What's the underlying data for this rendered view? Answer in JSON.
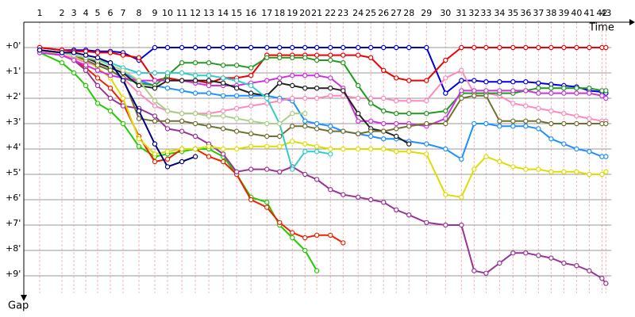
{
  "chart_data": {
    "type": "line",
    "x_label": "Time",
    "y_label": "Gap",
    "xlim": [
      0,
      48.1
    ],
    "ylim": [
      -1,
      10
    ],
    "y_inverted": true,
    "grid": true,
    "x": [
      1.25,
      3,
      3.94,
      4.88,
      5.81,
      6.81,
      7.81,
      9.06,
      10.31,
      11.31,
      12.44,
      13.5,
      14.56,
      15.69,
      16.75,
      17.88,
      19.13,
      20.13,
      21.13,
      22.13,
      23.06,
      24.13,
      25.13,
      26.31,
      27.31,
      28.31,
      29.31,
      30.31,
      31.69,
      33.19,
      34.44,
      35.44,
      36.38,
      37.44,
      38.5,
      39.5,
      40.5,
      41.5,
      42.5,
      43.5,
      44.5,
      45.5,
      45.81
    ],
    "xticks": [
      {
        "value": 1.25,
        "label": "1"
      },
      {
        "value": 3,
        "label": "2"
      },
      {
        "value": 3.94,
        "label": "3"
      },
      {
        "value": 4.88,
        "label": "4"
      },
      {
        "value": 5.81,
        "label": "5"
      },
      {
        "value": 6.81,
        "label": "6"
      },
      {
        "value": 7.81,
        "label": "7"
      },
      {
        "value": 9.06,
        "label": "8"
      },
      {
        "value": 10.31,
        "label": "9"
      },
      {
        "value": 11.31,
        "label": "10"
      },
      {
        "value": 12.44,
        "label": "11"
      },
      {
        "value": 13.5,
        "label": "12"
      },
      {
        "value": 14.56,
        "label": "13"
      },
      {
        "value": 15.69,
        "label": "14"
      },
      {
        "value": 16.75,
        "label": "15"
      },
      {
        "value": 17.88,
        "label": "16"
      },
      {
        "value": 19.13,
        "label": "17"
      },
      {
        "value": 20.13,
        "label": "18"
      },
      {
        "value": 21.13,
        "label": "19"
      },
      {
        "value": 22.13,
        "label": "20"
      },
      {
        "value": 23.06,
        "label": "21"
      },
      {
        "value": 24.13,
        "label": "22"
      },
      {
        "value": 25.13,
        "label": "23"
      },
      {
        "value": 26.31,
        "label": "24"
      },
      {
        "value": 27.31,
        "label": "25"
      },
      {
        "value": 28.31,
        "label": "26"
      },
      {
        "value": 29.31,
        "label": "27"
      },
      {
        "value": 30.31,
        "label": "28"
      },
      {
        "value": 31.69,
        "label": "29"
      },
      {
        "value": 33.19,
        "label": "30"
      },
      {
        "value": 34.44,
        "label": "31"
      },
      {
        "value": 35.44,
        "label": "32"
      },
      {
        "value": 36.38,
        "label": "33"
      },
      {
        "value": 37.44,
        "label": "34"
      },
      {
        "value": 38.5,
        "label": "35"
      },
      {
        "value": 39.5,
        "label": "36"
      },
      {
        "value": 40.5,
        "label": "37"
      },
      {
        "value": 41.5,
        "label": "38"
      },
      {
        "value": 42.5,
        "label": "39"
      },
      {
        "value": 43.5,
        "label": "40"
      },
      {
        "value": 44.5,
        "label": "41"
      },
      {
        "value": 45.5,
        "label": "42"
      },
      {
        "value": 45.81,
        "label": "43"
      }
    ],
    "yticks": [
      {
        "value": 0,
        "label": "+0'"
      },
      {
        "value": 1,
        "label": "+1'"
      },
      {
        "value": 2,
        "label": "+2'"
      },
      {
        "value": 3,
        "label": "+3'"
      },
      {
        "value": 4,
        "label": "+4'"
      },
      {
        "value": 5,
        "label": "+5'"
      },
      {
        "value": 6,
        "label": "+6'"
      },
      {
        "value": 7,
        "label": "+7'"
      },
      {
        "value": 8,
        "label": "+8'"
      },
      {
        "value": 9,
        "label": "+9'"
      }
    ],
    "series": [
      {
        "color": "#0000dd",
        "values": [
          0,
          0.1,
          0.1,
          0.1,
          0.15,
          0.15,
          0.2,
          0.5,
          0,
          0,
          0,
          0,
          0,
          0,
          0,
          0,
          0,
          0,
          0,
          0,
          0,
          0,
          0,
          0,
          0,
          0,
          0,
          0,
          0,
          1.8,
          1.3,
          1.3,
          1.35,
          1.35,
          1.35,
          1.35,
          1.4,
          1.45,
          1.5,
          1.55,
          1.7,
          1.75,
          1.8
        ]
      },
      {
        "color": "#ee0000",
        "values": [
          0,
          0.1,
          0.15,
          0.15,
          0.2,
          0.2,
          0.3,
          0.4,
          1.3,
          1.2,
          1.3,
          1.3,
          1.4,
          1.2,
          1.2,
          1.1,
          0.3,
          0.3,
          0.3,
          0.3,
          0.3,
          0.3,
          0.3,
          0.3,
          0.4,
          0.9,
          1.2,
          1.3,
          1.3,
          0.5,
          0,
          0,
          0,
          0,
          0,
          0,
          0,
          0,
          0,
          0,
          0,
          0,
          0
        ]
      },
      {
        "color": "#22cc00",
        "values": [
          0.2,
          0.6,
          1.0,
          1.5,
          2.2,
          2.5,
          3.0,
          3.9,
          4.3,
          4.2,
          4.1,
          4.0,
          4.0,
          4.3,
          5.0,
          5.9,
          6.1,
          7.0,
          7.5,
          8.0,
          8.8,
          null,
          null,
          null,
          null,
          null,
          null,
          null,
          null,
          null,
          null,
          null,
          null,
          null,
          null,
          null,
          null,
          null,
          null,
          null,
          null,
          null,
          null
        ]
      },
      {
        "color": "#ee2200",
        "values": [
          0.1,
          0.3,
          0.5,
          0.8,
          1.2,
          1.6,
          2.2,
          3.5,
          4.5,
          4.4,
          4.0,
          4.0,
          4.3,
          4.5,
          5.0,
          6.0,
          6.3,
          6.9,
          7.3,
          7.5,
          7.4,
          7.4,
          7.7,
          null,
          null,
          null,
          null,
          null,
          null,
          null,
          null,
          null,
          null,
          null,
          null,
          null,
          null,
          null,
          null,
          null,
          null,
          null,
          null
        ]
      },
      {
        "color": "#993399",
        "values": [
          0.2,
          0.3,
          0.5,
          0.9,
          1.5,
          2.0,
          2.3,
          2.4,
          2.7,
          3.2,
          3.3,
          3.5,
          3.8,
          4.2,
          4.9,
          4.8,
          4.8,
          4.9,
          4.7,
          5.0,
          5.2,
          5.6,
          5.8,
          5.9,
          6.0,
          6.1,
          6.4,
          6.6,
          6.9,
          7.0,
          7.0,
          8.8,
          8.9,
          8.5,
          8.1,
          8.1,
          8.2,
          8.3,
          8.5,
          8.6,
          8.8,
          9.1,
          9.3
        ]
      },
      {
        "color": "#dddd00",
        "values": [
          0.1,
          0.3,
          0.4,
          0.5,
          0.8,
          1.2,
          2.0,
          3.6,
          4.2,
          4.1,
          4.0,
          4.0,
          3.9,
          4.0,
          4.0,
          3.9,
          3.9,
          3.9,
          3.7,
          3.8,
          3.9,
          4.0,
          4.0,
          4.0,
          4.0,
          4.0,
          4.1,
          4.1,
          4.2,
          5.8,
          5.9,
          4.8,
          4.3,
          4.5,
          4.7,
          4.8,
          4.8,
          4.9,
          4.9,
          4.9,
          5.0,
          5.0,
          4.9
        ]
      },
      {
        "color": "#1e90ff",
        "values": [
          0.1,
          0.2,
          0.3,
          0.4,
          0.6,
          0.8,
          1.0,
          1.3,
          1.5,
          1.6,
          1.7,
          1.8,
          1.8,
          1.9,
          1.9,
          1.9,
          1.9,
          2.0,
          2.1,
          2.9,
          3.0,
          3.1,
          3.3,
          3.4,
          3.5,
          3.6,
          3.6,
          3.7,
          3.8,
          4.0,
          4.4,
          3.0,
          3.0,
          3.1,
          3.1,
          3.1,
          3.2,
          3.6,
          3.8,
          4.0,
          4.1,
          4.3,
          4.3
        ]
      },
      {
        "color": "#ff88bb",
        "values": [
          0.2,
          0.3,
          0.4,
          0.6,
          0.7,
          0.9,
          1.2,
          1.8,
          2.3,
          2.5,
          2.6,
          2.6,
          2.6,
          2.5,
          2.4,
          2.3,
          2.2,
          2.1,
          2.0,
          2.0,
          2.0,
          1.9,
          1.9,
          2.0,
          2.0,
          2.0,
          2.1,
          2.1,
          2.1,
          1.2,
          0.9,
          1.8,
          1.8,
          1.9,
          2.2,
          2.3,
          2.4,
          2.5,
          2.6,
          2.7,
          2.8,
          2.9,
          2.9
        ]
      },
      {
        "color": "#229922",
        "values": [
          0.1,
          0.2,
          0.3,
          0.5,
          0.7,
          0.9,
          1.2,
          1.4,
          1.5,
          1.1,
          0.6,
          0.6,
          0.6,
          0.7,
          0.7,
          0.8,
          0.4,
          0.4,
          0.4,
          0.4,
          0.5,
          0.5,
          0.6,
          1.5,
          2.2,
          2.5,
          2.6,
          2.6,
          2.6,
          2.5,
          1.8,
          1.8,
          1.8,
          1.8,
          1.8,
          1.7,
          1.6,
          1.6,
          1.6,
          1.6,
          1.6,
          1.7,
          1.7
        ]
      },
      {
        "color": "#cc33dd",
        "values": [
          0.2,
          0.3,
          0.5,
          0.7,
          0.9,
          1.1,
          1.2,
          1.3,
          1.3,
          1.3,
          1.3,
          1.4,
          1.5,
          1.5,
          1.5,
          1.4,
          1.3,
          1.2,
          1.1,
          1.1,
          1.1,
          1.2,
          1.6,
          2.9,
          2.9,
          3.0,
          3.0,
          3.0,
          3.1,
          2.8,
          1.7,
          1.7,
          1.7,
          1.7,
          1.7,
          1.7,
          1.8,
          1.8,
          1.8,
          1.8,
          1.8,
          1.9,
          2.0
        ]
      },
      {
        "color": "#222222",
        "values": [
          0.1,
          0.2,
          0.3,
          0.4,
          0.6,
          0.8,
          1.0,
          1.5,
          1.6,
          1.3,
          1.3,
          1.3,
          1.3,
          1.4,
          1.6,
          1.8,
          1.9,
          1.4,
          1.5,
          1.6,
          1.6,
          1.6,
          1.7,
          2.6,
          3.2,
          3.3,
          3.5,
          3.8,
          null,
          null,
          null,
          null,
          null,
          null,
          null,
          null,
          null,
          null,
          null,
          null,
          null,
          null,
          null
        ]
      },
      {
        "color": "#707030",
        "values": [
          0.1,
          0.2,
          0.3,
          0.5,
          0.7,
          0.9,
          1.2,
          2.8,
          2.9,
          2.9,
          2.9,
          3.0,
          3.1,
          3.2,
          3.3,
          3.4,
          3.5,
          3.5,
          3.1,
          3.1,
          3.2,
          3.3,
          3.3,
          3.4,
          3.3,
          3.3,
          3.2,
          3.1,
          3.0,
          3.0,
          2.0,
          1.9,
          1.9,
          2.9,
          2.9,
          2.9,
          2.9,
          3.0,
          3.0,
          3.0,
          3.0,
          3.0,
          3.0
        ]
      },
      {
        "color": "#33cccc",
        "values": [
          0.1,
          0.2,
          0.3,
          0.4,
          0.5,
          0.6,
          0.8,
          1.0,
          1.0,
          1.0,
          1.0,
          1.1,
          1.1,
          1.2,
          1.3,
          1.5,
          2.0,
          3.0,
          4.8,
          4.1,
          4.1,
          4.2,
          null,
          null,
          null,
          null,
          null,
          null,
          null,
          null,
          null,
          null,
          null,
          null,
          null,
          null,
          null,
          null,
          null,
          null,
          null,
          null,
          null
        ]
      },
      {
        "color": "#a8d088",
        "values": [
          0.1,
          0.2,
          0.3,
          0.4,
          0.5,
          0.7,
          0.9,
          1.3,
          2.1,
          2.5,
          2.6,
          2.6,
          2.7,
          2.7,
          2.8,
          2.9,
          3.0,
          3.0,
          2.6,
          2.6,
          null,
          null,
          null,
          null,
          null,
          null,
          null,
          null,
          null,
          null,
          null,
          null,
          null,
          null,
          null,
          null,
          null,
          null,
          null,
          null,
          null,
          null,
          null
        ]
      },
      {
        "color": "#000080",
        "values": [
          0.1,
          0.2,
          0.2,
          0.3,
          0.4,
          0.6,
          1.3,
          2.5,
          3.8,
          4.7,
          4.5,
          4.3,
          null,
          null,
          null,
          null,
          null,
          null,
          null,
          null,
          null,
          null,
          null,
          null,
          null,
          null,
          null,
          null,
          null,
          null,
          null,
          null,
          null,
          null,
          null,
          null,
          null,
          null,
          null,
          null,
          null,
          null,
          null
        ]
      }
    ]
  }
}
